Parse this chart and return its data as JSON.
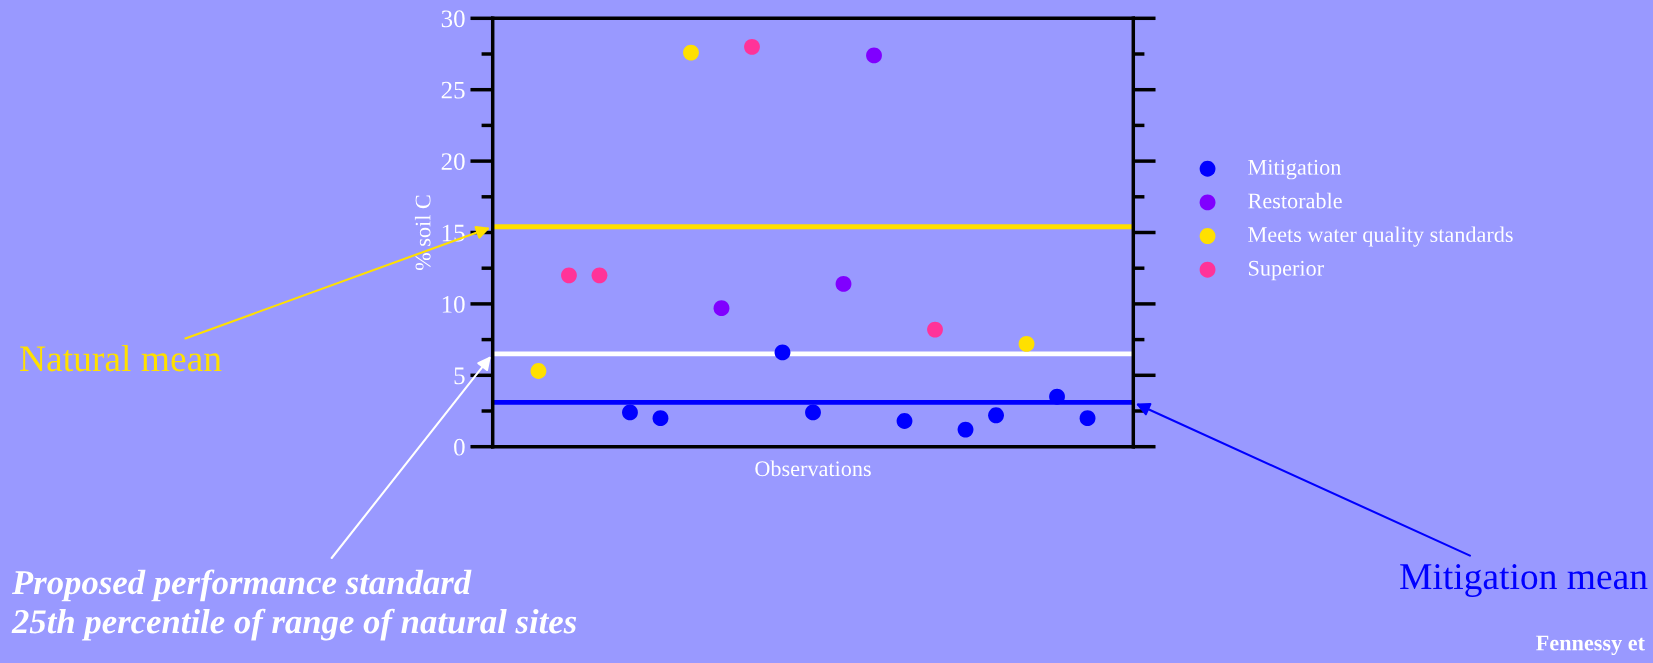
{
  "chart_data": {
    "type": "scatter",
    "xlabel": "Observations",
    "ylabel": "% soil C",
    "categories": [
      null,
      null,
      null,
      null,
      null,
      null,
      null,
      null,
      null,
      null,
      null,
      null,
      null,
      null,
      null,
      null,
      null,
      null,
      null,
      null,
      null
    ],
    "series": [
      {
        "name": "Mitigation",
        "color": "#0000ff",
        "values": [
          null,
          null,
          null,
          null,
          2.4,
          2.0,
          null,
          null,
          null,
          6.6,
          2.4,
          null,
          null,
          1.8,
          null,
          1.2,
          2.2,
          null,
          3.5,
          2.0,
          null
        ]
      },
      {
        "name": "Restorable",
        "color": "#8000ff",
        "values": [
          null,
          null,
          null,
          null,
          null,
          null,
          null,
          9.7,
          null,
          null,
          null,
          11.4,
          27.4,
          null,
          null,
          null,
          null,
          null,
          null,
          null,
          null
        ]
      },
      {
        "name": "Meets water quality standards",
        "color": "#ffe000",
        "values": [
          null,
          5.3,
          null,
          null,
          null,
          null,
          27.6,
          null,
          null,
          null,
          null,
          null,
          null,
          null,
          null,
          null,
          null,
          7.2,
          null,
          null,
          null
        ]
      },
      {
        "name": "Superior",
        "color": "#ff3399",
        "values": [
          null,
          null,
          12.0,
          12.0,
          null,
          null,
          null,
          null,
          28.0,
          null,
          null,
          null,
          null,
          null,
          8.2,
          null,
          null,
          null,
          null,
          null,
          null
        ]
      }
    ],
    "marker": "circle",
    "ylim": [
      0,
      30
    ],
    "yticks": [
      0,
      {
        "value": 2.5,
        "label": null
      },
      5,
      {
        "value": 7.5,
        "label": null
      },
      10,
      {
        "value": 12.5,
        "label": null
      },
      15,
      {
        "value": 17.5,
        "label": null
      },
      20,
      {
        "value": 22.5,
        "label": null
      },
      25,
      {
        "value": 27.5,
        "label": null
      },
      30
    ],
    "tick_labels": "y",
    "grid": false,
    "legend": "right",
    "ref_lines": [
      {
        "axis": "y",
        "value": 15.4,
        "label": "Natural mean",
        "color": "#ffe000"
      },
      {
        "axis": "y",
        "value": 6.5,
        "label": "Proposed performance standard\n25th percentile of range of natural sites",
        "color": "#ffffff"
      },
      {
        "axis": "y",
        "value": 3.1,
        "label": "Mitigation mean",
        "color": "#0000ff"
      }
    ],
    "annotations": [
      "Fennessy et"
    ]
  }
}
